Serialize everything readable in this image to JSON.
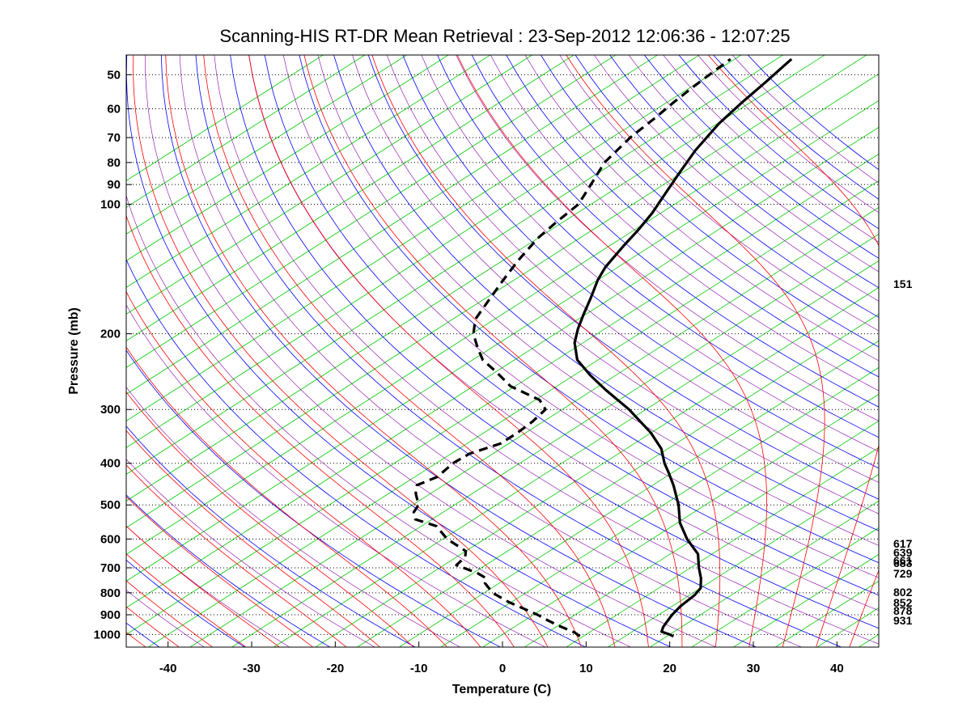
{
  "chart_data": {
    "type": "line",
    "subtype": "skew-t log-p thermodynamic diagram",
    "title": "Scanning-HIS RT-DR Mean Retrieval : 23-Sep-2012 12:06:36 - 12:07:25",
    "xlabel": "Temperature (C)",
    "ylabel": "Pressure (mb)",
    "xlim": [
      -45,
      45
    ],
    "ylim": [
      1070,
      45
    ],
    "x_ticks": [
      -40,
      -30,
      -20,
      -10,
      0,
      10,
      20,
      30,
      40
    ],
    "y_ticks": [
      50,
      60,
      70,
      80,
      90,
      100,
      200,
      300,
      400,
      500,
      600,
      700,
      800,
      900,
      1000
    ],
    "pressure_gridlines": [
      50,
      60,
      70,
      80,
      90,
      100,
      200,
      300,
      400,
      500,
      600,
      700,
      800,
      900,
      1000
    ],
    "colors": {
      "temperature": "#000000",
      "dewpoint": "#000000",
      "isotherms": "#00cc00",
      "dry_adiabats": "#0000ff",
      "moist_adiabats": "#ff0000",
      "mixing_ratio": "#8800aa",
      "gridlines": "#000000"
    },
    "right_labels": [
      "151",
      "617",
      "639",
      "661",
      "683",
      "729",
      "802",
      "852",
      "878",
      "931"
    ],
    "series": [
      {
        "name": "Temperature",
        "style": "solid",
        "points": [
          {
            "p": 1010,
            "t": 20.8
          },
          {
            "p": 1000,
            "t": 20.0
          },
          {
            "p": 985,
            "t": 18.5
          },
          {
            "p": 960,
            "t": 17.8
          },
          {
            "p": 930,
            "t": 17.2
          },
          {
            "p": 900,
            "t": 16.6
          },
          {
            "p": 860,
            "t": 16.0
          },
          {
            "p": 810,
            "t": 15.6
          },
          {
            "p": 780,
            "t": 15.0
          },
          {
            "p": 740,
            "t": 13.2
          },
          {
            "p": 700,
            "t": 11.0
          },
          {
            "p": 650,
            "t": 8.3
          },
          {
            "p": 600,
            "t": 4.2
          },
          {
            "p": 550,
            "t": 0.3
          },
          {
            "p": 500,
            "t": -3.2
          },
          {
            "p": 450,
            "t": -7.5
          },
          {
            "p": 420,
            "t": -10.5
          },
          {
            "p": 400,
            "t": -12.7
          },
          {
            "p": 370,
            "t": -15.8
          },
          {
            "p": 340,
            "t": -20.0
          },
          {
            "p": 300,
            "t": -27.0
          },
          {
            "p": 270,
            "t": -33.5
          },
          {
            "p": 250,
            "t": -38.0
          },
          {
            "p": 230,
            "t": -42.5
          },
          {
            "p": 210,
            "t": -46.0
          },
          {
            "p": 195,
            "t": -48.2
          },
          {
            "p": 180,
            "t": -50.3
          },
          {
            "p": 165,
            "t": -52.5
          },
          {
            "p": 150,
            "t": -55.0
          },
          {
            "p": 140,
            "t": -56.5
          },
          {
            "p": 125,
            "t": -58.3
          },
          {
            "p": 115,
            "t": -59.5
          },
          {
            "p": 105,
            "t": -61.0
          },
          {
            "p": 95,
            "t": -63.0
          },
          {
            "p": 85,
            "t": -65.2
          },
          {
            "p": 75,
            "t": -67.6
          },
          {
            "p": 65,
            "t": -69.8
          },
          {
            "p": 58,
            "t": -71.0
          },
          {
            "p": 52,
            "t": -72.0
          },
          {
            "p": 48,
            "t": -72.8
          },
          {
            "p": 46,
            "t": -73.2
          }
        ]
      },
      {
        "name": "Dewpoint",
        "style": "dashed",
        "points": [
          {
            "p": 1010,
            "t": 9.6
          },
          {
            "p": 990,
            "t": 8.3
          },
          {
            "p": 960,
            "t": 5.6
          },
          {
            "p": 930,
            "t": 3.0
          },
          {
            "p": 900,
            "t": 0.5
          },
          {
            "p": 870,
            "t": -2.4
          },
          {
            "p": 840,
            "t": -5.4
          },
          {
            "p": 800,
            "t": -9.0
          },
          {
            "p": 760,
            "t": -11.7
          },
          {
            "p": 740,
            "t": -12.5
          },
          {
            "p": 720,
            "t": -14.5
          },
          {
            "p": 690,
            "t": -18.5
          },
          {
            "p": 660,
            "t": -19.0
          },
          {
            "p": 640,
            "t": -20.0
          },
          {
            "p": 600,
            "t": -24.5
          },
          {
            "p": 560,
            "t": -28.2
          },
          {
            "p": 540,
            "t": -32.0
          },
          {
            "p": 520,
            "t": -33.5
          },
          {
            "p": 500,
            "t": -34.3
          },
          {
            "p": 470,
            "t": -36.8
          },
          {
            "p": 450,
            "t": -38.2
          },
          {
            "p": 430,
            "t": -37.3
          },
          {
            "p": 400,
            "t": -38.0
          },
          {
            "p": 380,
            "t": -37.8
          },
          {
            "p": 360,
            "t": -36.0
          },
          {
            "p": 340,
            "t": -36.0
          },
          {
            "p": 320,
            "t": -36.3
          },
          {
            "p": 300,
            "t": -37.0
          },
          {
            "p": 285,
            "t": -39.5
          },
          {
            "p": 265,
            "t": -45.5
          },
          {
            "p": 245,
            "t": -50.0
          },
          {
            "p": 230,
            "t": -53.8
          },
          {
            "p": 215,
            "t": -56.8
          },
          {
            "p": 200,
            "t": -59.8
          },
          {
            "p": 185,
            "t": -62.3
          },
          {
            "p": 165,
            "t": -64.5
          },
          {
            "p": 150,
            "t": -66.3
          },
          {
            "p": 135,
            "t": -68.2
          },
          {
            "p": 120,
            "t": -70.0
          },
          {
            "p": 110,
            "t": -70.8
          },
          {
            "p": 100,
            "t": -71.5
          },
          {
            "p": 90,
            "t": -73.7
          },
          {
            "p": 80,
            "t": -76.2
          },
          {
            "p": 70,
            "t": -77.8
          },
          {
            "p": 63,
            "t": -78.5
          },
          {
            "p": 58,
            "t": -79.2
          },
          {
            "p": 53,
            "t": -79.8
          },
          {
            "p": 49,
            "t": -80.2
          },
          {
            "p": 46,
            "t": -80.5
          }
        ]
      }
    ]
  }
}
